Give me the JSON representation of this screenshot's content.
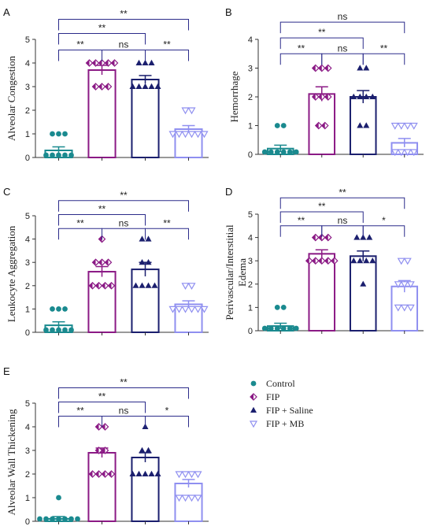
{
  "legend": {
    "entries": [
      {
        "name": "Control",
        "color": "#1a8a8f",
        "marker": "circle"
      },
      {
        "name": "FIP",
        "color": "#8b1a85",
        "marker": "half-diamond"
      },
      {
        "name": "FIP + Saline",
        "color": "#1b1f6e",
        "marker": "triangle-up"
      },
      {
        "name": "FIP + MB",
        "color": "#8f8ff0",
        "marker": "triangle-down-open"
      }
    ]
  },
  "chart_data": [
    {
      "panel": "A",
      "type": "bar",
      "ylabel": "Alveolar Congestion",
      "yticks": [
        "0",
        "1",
        "2",
        "3",
        "4",
        "5"
      ],
      "ylim": [
        0,
        5
      ],
      "series": [
        {
          "name": "Control",
          "mean": 0.3,
          "sem": 0.15,
          "points": [
            1,
            1,
            1,
            0,
            0,
            0,
            0,
            0
          ]
        },
        {
          "name": "FIP",
          "mean": 3.7,
          "sem": 0.2,
          "points": [
            4,
            4,
            4,
            4,
            4,
            3,
            3,
            3
          ]
        },
        {
          "name": "FIP + Saline",
          "mean": 3.3,
          "sem": 0.17,
          "points": [
            4,
            4,
            4,
            3,
            3,
            3,
            3,
            3
          ]
        },
        {
          "name": "FIP + MB",
          "mean": 1.2,
          "sem": 0.15,
          "points": [
            2,
            2,
            1,
            1,
            1,
            1,
            1,
            1
          ]
        }
      ],
      "comparisons": [
        {
          "from": 1,
          "to": 2,
          "label": "**",
          "y": 4.55
        },
        {
          "from": 2,
          "to": 3,
          "label": "ns",
          "y": 4.55
        },
        {
          "from": 3,
          "to": 4,
          "label": "**",
          "y": 4.55
        },
        {
          "from": 1,
          "to": 3,
          "label": "**",
          "y": 5.25
        },
        {
          "from": 1,
          "to": 4,
          "label": "**",
          "y": 5.85
        }
      ]
    },
    {
      "panel": "B",
      "type": "bar",
      "ylabel": "Hemorrhage",
      "yticks": [
        "0",
        "1",
        "2",
        "3",
        "4"
      ],
      "ylim": [
        0,
        4
      ],
      "series": [
        {
          "name": "Control",
          "mean": 0.2,
          "sem": 0.12,
          "points": [
            1,
            1,
            0,
            0,
            0,
            0,
            0,
            0
          ]
        },
        {
          "name": "FIP",
          "mean": 2.1,
          "sem": 0.25,
          "points": [
            3,
            3,
            3,
            2,
            2,
            2,
            1,
            1
          ]
        },
        {
          "name": "FIP + Saline",
          "mean": 2.0,
          "sem": 0.22,
          "points": [
            3,
            3,
            2,
            2,
            2,
            2,
            1,
            1
          ]
        },
        {
          "name": "FIP + MB",
          "mean": 0.4,
          "sem": 0.15,
          "points": [
            1,
            1,
            1,
            1,
            0,
            0,
            0,
            0
          ]
        }
      ],
      "comparisons": [
        {
          "from": 1,
          "to": 2,
          "label": "**",
          "y": 3.5
        },
        {
          "from": 2,
          "to": 3,
          "label": "ns",
          "y": 3.5
        },
        {
          "from": 3,
          "to": 4,
          "label": "**",
          "y": 3.5
        },
        {
          "from": 1,
          "to": 3,
          "label": "**",
          "y": 4.05
        },
        {
          "from": 1,
          "to": 4,
          "label": "ns",
          "y": 4.6
        }
      ]
    },
    {
      "panel": "C",
      "type": "bar",
      "ylabel": "Leukocyte Aggregation",
      "yticks": [
        "0",
        "1",
        "2",
        "3",
        "4",
        "5"
      ],
      "ylim": [
        0,
        5
      ],
      "series": [
        {
          "name": "Control",
          "mean": 0.3,
          "sem": 0.15,
          "points": [
            1,
            1,
            1,
            0,
            0,
            0,
            0,
            0
          ]
        },
        {
          "name": "FIP",
          "mean": 2.6,
          "sem": 0.22,
          "points": [
            4,
            3,
            3,
            3,
            2,
            2,
            2,
            2
          ]
        },
        {
          "name": "FIP + Saline",
          "mean": 2.7,
          "sem": 0.3,
          "points": [
            4,
            4,
            3,
            3,
            2,
            2,
            2,
            2
          ]
        },
        {
          "name": "FIP + MB",
          "mean": 1.2,
          "sem": 0.15,
          "points": [
            2,
            2,
            1,
            1,
            1,
            1,
            1,
            1
          ]
        }
      ],
      "comparisons": [
        {
          "from": 1,
          "to": 2,
          "label": "**",
          "y": 4.45
        },
        {
          "from": 2,
          "to": 3,
          "label": "ns",
          "y": 4.45
        },
        {
          "from": 3,
          "to": 4,
          "label": "**",
          "y": 4.45
        },
        {
          "from": 1,
          "to": 3,
          "label": "**",
          "y": 5.05
        },
        {
          "from": 1,
          "to": 4,
          "label": "**",
          "y": 5.65
        }
      ]
    },
    {
      "panel": "D",
      "type": "bar",
      "ylabel_lines": [
        "Perivascular/Interstitial",
        "Edema"
      ],
      "yticks": [
        "0",
        "1",
        "2",
        "3",
        "4",
        "5"
      ],
      "ylim": [
        0,
        5
      ],
      "series": [
        {
          "name": "Control",
          "mean": 0.2,
          "sem": 0.12,
          "points": [
            1,
            1,
            0,
            0,
            0,
            0,
            0,
            0
          ]
        },
        {
          "name": "FIP",
          "mean": 3.3,
          "sem": 0.17,
          "points": [
            4,
            4,
            4,
            3,
            3,
            3,
            3,
            3
          ]
        },
        {
          "name": "FIP + Saline",
          "mean": 3.2,
          "sem": 0.22,
          "points": [
            4,
            4,
            4,
            3,
            3,
            3,
            3,
            2
          ]
        },
        {
          "name": "FIP + MB",
          "mean": 1.9,
          "sem": 0.25,
          "points": [
            3,
            3,
            2,
            2,
            2,
            1,
            1,
            1
          ]
        }
      ],
      "comparisons": [
        {
          "from": 1,
          "to": 2,
          "label": "**",
          "y": 4.5
        },
        {
          "from": 2,
          "to": 3,
          "label": "ns",
          "y": 4.5
        },
        {
          "from": 3,
          "to": 4,
          "label": "*",
          "y": 4.5
        },
        {
          "from": 1,
          "to": 3,
          "label": "**",
          "y": 5.1
        },
        {
          "from": 1,
          "to": 4,
          "label": "**",
          "y": 5.7
        }
      ]
    },
    {
      "panel": "E",
      "type": "bar",
      "ylabel": "Alveolar Wall Thickening",
      "yticks": [
        "0",
        "1",
        "2",
        "3",
        "4",
        "5"
      ],
      "ylim": [
        0,
        5
      ],
      "series": [
        {
          "name": "Control",
          "mean": 0.1,
          "sem": 0.1,
          "points": [
            1,
            0,
            0,
            0,
            0,
            0,
            0,
            0
          ]
        },
        {
          "name": "FIP",
          "mean": 2.9,
          "sem": 0.2,
          "points": [
            4,
            4,
            3,
            3,
            2,
            2,
            2,
            2
          ]
        },
        {
          "name": "FIP + Saline",
          "mean": 2.7,
          "sem": 0.2,
          "points": [
            4,
            3,
            3,
            2,
            2,
            2,
            2,
            2
          ]
        },
        {
          "name": "FIP + MB",
          "mean": 1.6,
          "sem": 0.17,
          "points": [
            2,
            2,
            2,
            2,
            1,
            1,
            1,
            1
          ]
        }
      ],
      "comparisons": [
        {
          "from": 1,
          "to": 2,
          "label": "**",
          "y": 4.45
        },
        {
          "from": 2,
          "to": 3,
          "label": "ns",
          "y": 4.45
        },
        {
          "from": 3,
          "to": 4,
          "label": "*",
          "y": 4.45
        },
        {
          "from": 1,
          "to": 3,
          "label": "**",
          "y": 5.05
        },
        {
          "from": 1,
          "to": 4,
          "label": "**",
          "y": 5.65
        }
      ]
    }
  ]
}
